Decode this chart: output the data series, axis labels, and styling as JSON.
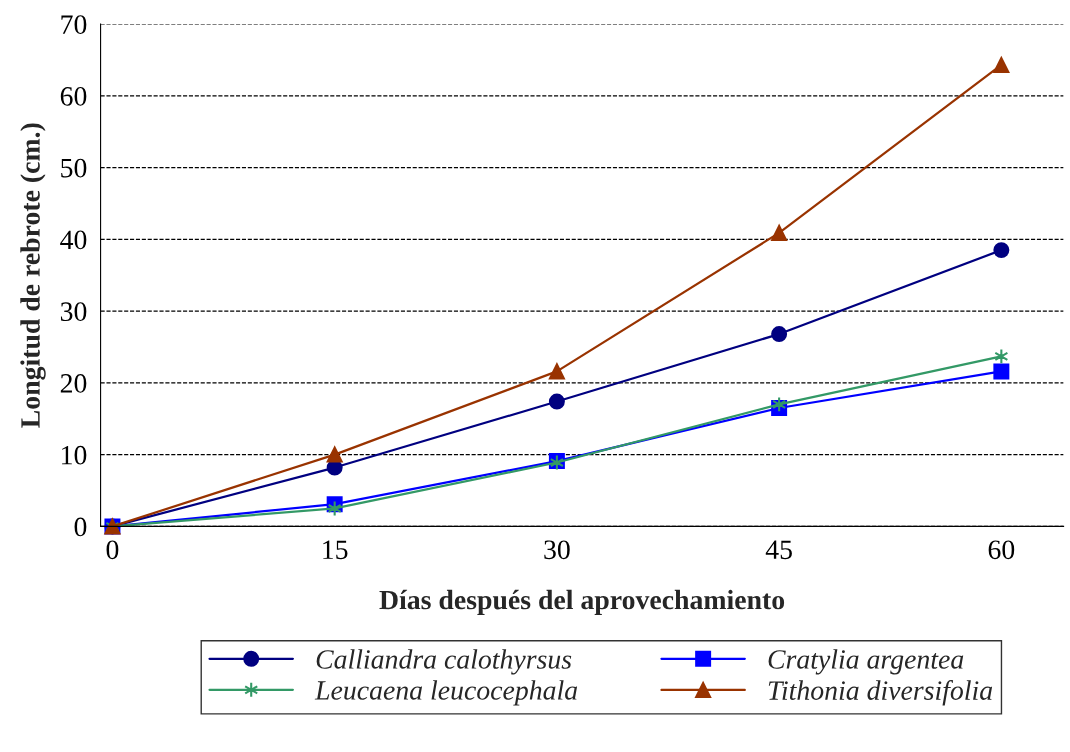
{
  "chart_data": {
    "type": "line",
    "xlabel": "Días después del aprovechamiento",
    "ylabel": "Longitud de rebrote (cm.)",
    "x": [
      0,
      15,
      30,
      45,
      60
    ],
    "series": [
      {
        "name": "Calliandra calothyrsus",
        "color": "#000080",
        "marker": "circle",
        "values": [
          0,
          8.2,
          17.4,
          26.8,
          38.5
        ]
      },
      {
        "name": "Cratylia argentea",
        "color": "#0000ff",
        "marker": "square",
        "values": [
          0,
          3.1,
          9.1,
          16.5,
          21.6
        ]
      },
      {
        "name": "Leucaena leucocephala",
        "color": "#339966",
        "marker": "cross",
        "values": [
          0,
          2.5,
          8.9,
          17.0,
          23.7
        ]
      },
      {
        "name": "Tithonia diversifolia",
        "color": "#993300",
        "marker": "triangle",
        "values": [
          0,
          10.0,
          21.6,
          40.9,
          64.3
        ]
      }
    ],
    "xlim": [
      -0.8,
      64.2
    ],
    "xticks": [
      0,
      15,
      30,
      45,
      60
    ],
    "ylim": [
      0,
      70
    ],
    "yticks": [
      0,
      10,
      20,
      30,
      40,
      50,
      60,
      70
    ],
    "grid": "y",
    "line_style": "solid",
    "legend": "bottom"
  }
}
